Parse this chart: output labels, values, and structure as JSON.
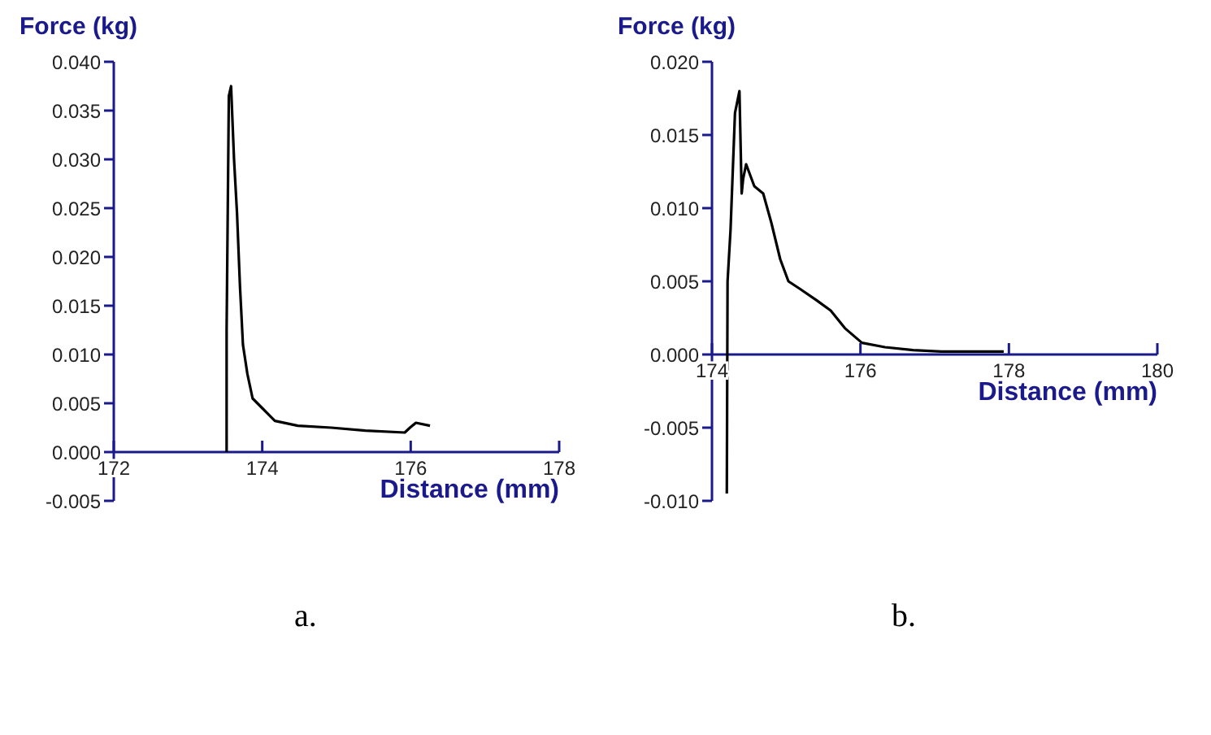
{
  "chart_data": [
    {
      "type": "line",
      "ylabel": "Force (kg)",
      "xlabel": "Distance (mm)",
      "annotations": [
        "a."
      ],
      "series": [
        {
          "color": "#000000",
          "x": [
            173.52,
            173.52,
            173.55,
            173.58,
            173.62,
            173.66,
            173.7,
            173.74,
            173.8,
            173.87,
            174.0,
            174.17,
            174.48,
            174.93,
            175.39,
            175.92,
            175.99,
            176.07,
            176.26
          ],
          "values": [
            0,
            0.0125,
            0.0365,
            0.0375,
            0.03,
            0.0245,
            0.017,
            0.011,
            0.008,
            0.0055,
            0.0045,
            0.0032,
            0.0027,
            0.0025,
            0.0022,
            0.002,
            0.0025,
            0.003,
            0.0027
          ]
        }
      ],
      "xlim": [
        172,
        178
      ],
      "xticks": [
        172,
        174,
        176,
        178
      ],
      "ylim": [
        -0.005,
        0.04
      ],
      "yticks": [
        {
          "value": -0.005,
          "label": "-0.005"
        },
        {
          "value": 0,
          "label": "0.000"
        },
        {
          "value": 0.005,
          "label": "0.005"
        },
        {
          "value": 0.01,
          "label": "0.010"
        },
        {
          "value": 0.015,
          "label": "0.015"
        },
        {
          "value": 0.02,
          "label": "0.020"
        },
        {
          "value": 0.025,
          "label": "0.025"
        },
        {
          "value": 0.03,
          "label": "0.030"
        },
        {
          "value": 0.035,
          "label": "0.035"
        },
        {
          "value": 0.04,
          "label": "0.040"
        }
      ]
    },
    {
      "type": "line",
      "ylabel": "Force (kg)",
      "xlabel": "Distance (mm)",
      "annotations": [
        "b."
      ],
      "series": [
        {
          "color": "#000000",
          "x": [
            174.2,
            174.21,
            174.25,
            174.31,
            174.37,
            174.4,
            174.42,
            174.46,
            174.57,
            174.69,
            174.8,
            174.92,
            175.03,
            175.18,
            175.41,
            175.6,
            175.79,
            176.02,
            176.33,
            176.71,
            177.09,
            177.47,
            177.93
          ],
          "values": [
            -0.0095,
            0.005,
            0.0085,
            0.0165,
            0.018,
            0.011,
            0.012,
            0.013,
            0.0115,
            0.011,
            0.009,
            0.0065,
            0.005,
            0.0045,
            0.0037,
            0.003,
            0.0018,
            0.0008,
            0.0005,
            0.0003,
            0.0002,
            0.0002,
            0.0002
          ]
        }
      ],
      "xlim": [
        174,
        180
      ],
      "xticks": [
        174,
        176,
        178,
        180
      ],
      "ylim": [
        -0.01,
        0.02
      ],
      "yticks": [
        {
          "value": -0.01,
          "label": "-0.010"
        },
        {
          "value": -0.005,
          "label": "-0.005"
        },
        {
          "value": 0,
          "label": "0.000"
        },
        {
          "value": 0.005,
          "label": "0.005"
        },
        {
          "value": 0.01,
          "label": "0.010"
        },
        {
          "value": 0.015,
          "label": "0.015"
        },
        {
          "value": 0.02,
          "label": "0.020"
        }
      ]
    }
  ]
}
